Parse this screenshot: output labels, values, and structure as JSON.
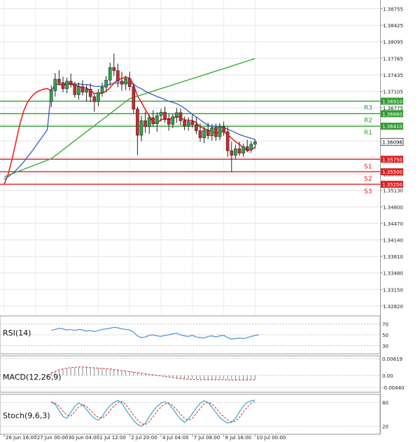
{
  "chart_data": {
    "type": "candlestick",
    "symbol_hint": "",
    "price_axis": {
      "ylim": [
        1.3265,
        1.3893
      ],
      "tick_labels": [
        "1.38755",
        "1.38425",
        "1.38095",
        "1.37765",
        "1.37435",
        "1.37105",
        "1.36775",
        "1.36445",
        "1.36115",
        "1.35785",
        "1.35455",
        "1.35130",
        "1.34800",
        "1.34470",
        "1.34140",
        "1.33810",
        "1.33480",
        "1.33150",
        "1.32820"
      ],
      "tick_values": [
        1.38755,
        1.38425,
        1.38095,
        1.37765,
        1.37435,
        1.37105,
        1.36775,
        1.36445,
        1.36115,
        1.35785,
        1.35455,
        1.3513,
        1.348,
        1.3447,
        1.3414,
        1.3381,
        1.3348,
        1.3315,
        1.3282
      ]
    },
    "current_price": {
      "label": "1.36096",
      "value": 1.36096
    },
    "levels": [
      {
        "name": "R3",
        "label": "1.36910",
        "value": 1.3691,
        "type": "resistance",
        "color": "#2e9e2e"
      },
      {
        "name": "R2",
        "label": "1.36660",
        "value": 1.3666,
        "type": "resistance",
        "color": "#2e9e2e"
      },
      {
        "name": "R1",
        "label": "1.36410",
        "value": 1.3641,
        "type": "resistance",
        "color": "#2e9e2e"
      },
      {
        "name": "S1",
        "label": "1.35750",
        "value": 1.3575,
        "type": "support",
        "color": "#e02020"
      },
      {
        "name": "S2",
        "label": "1.35500",
        "value": 1.355,
        "type": "support",
        "color": "#e02020"
      },
      {
        "name": "S3",
        "label": "1.35250",
        "value": 1.3525,
        "type": "support",
        "color": "#e02020"
      }
    ],
    "x_axis": {
      "labels": [
        {
          "text": "26 Jun 16:00",
          "bar": 0
        },
        {
          "text": "27 Jun 00:00",
          "bar": 8
        },
        {
          "text": "30 Jun 04:00",
          "bar": 16
        },
        {
          "text": "1 Jul 12:00",
          "bar": 24
        },
        {
          "text": "2 Jul 20:00",
          "bar": 32
        },
        {
          "text": "4 Jul 04:00",
          "bar": 40
        },
        {
          "text": "7 Jul 08:00",
          "bar": 48
        },
        {
          "text": "8 Jul 16:00",
          "bar": 56
        },
        {
          "text": "10 Jul 00:00",
          "bar": 64
        }
      ]
    },
    "candles_ohlc": [
      [
        1.369,
        1.3722,
        1.3679,
        1.3712
      ],
      [
        1.3712,
        1.3747,
        1.37,
        1.3735
      ],
      [
        1.3735,
        1.3753,
        1.3722,
        1.3728
      ],
      [
        1.3728,
        1.374,
        1.3709,
        1.3716
      ],
      [
        1.3716,
        1.3738,
        1.3707,
        1.3731
      ],
      [
        1.3731,
        1.3746,
        1.3718,
        1.3725
      ],
      [
        1.3725,
        1.373,
        1.3698,
        1.3704
      ],
      [
        1.3704,
        1.3728,
        1.3694,
        1.372
      ],
      [
        1.372,
        1.3733,
        1.3702,
        1.3709
      ],
      [
        1.3709,
        1.3723,
        1.369,
        1.3715
      ],
      [
        1.3715,
        1.3727,
        1.3689,
        1.37
      ],
      [
        1.37,
        1.3707,
        1.367,
        1.369
      ],
      [
        1.369,
        1.3715,
        1.3681,
        1.3708
      ],
      [
        1.3708,
        1.3728,
        1.37,
        1.3719
      ],
      [
        1.3719,
        1.3741,
        1.3709,
        1.3733
      ],
      [
        1.3733,
        1.3768,
        1.3722,
        1.3758
      ],
      [
        1.3758,
        1.3786,
        1.3741,
        1.3752
      ],
      [
        1.3752,
        1.3766,
        1.3719,
        1.3731
      ],
      [
        1.3731,
        1.375,
        1.3712,
        1.3725
      ],
      [
        1.3725,
        1.3742,
        1.3713,
        1.3736
      ],
      [
        1.3736,
        1.375,
        1.3712,
        1.372
      ],
      [
        1.372,
        1.3727,
        1.3667,
        1.3675
      ],
      [
        1.3675,
        1.368,
        1.3583,
        1.3623
      ],
      [
        1.3623,
        1.3662,
        1.3611,
        1.3652
      ],
      [
        1.3652,
        1.367,
        1.3628,
        1.364
      ],
      [
        1.364,
        1.3664,
        1.3626,
        1.3658
      ],
      [
        1.3658,
        1.3673,
        1.364,
        1.3646
      ],
      [
        1.3646,
        1.3669,
        1.363,
        1.3662
      ],
      [
        1.3662,
        1.3676,
        1.365,
        1.3669
      ],
      [
        1.3669,
        1.368,
        1.3648,
        1.3655
      ],
      [
        1.3655,
        1.3666,
        1.3632,
        1.3645
      ],
      [
        1.3645,
        1.3666,
        1.3637,
        1.366
      ],
      [
        1.366,
        1.3677,
        1.3648,
        1.3668
      ],
      [
        1.3668,
        1.3676,
        1.3643,
        1.3652
      ],
      [
        1.3652,
        1.366,
        1.3633,
        1.3641
      ],
      [
        1.3641,
        1.3658,
        1.3632,
        1.365
      ],
      [
        1.365,
        1.3664,
        1.3638,
        1.3644
      ],
      [
        1.3644,
        1.366,
        1.3625,
        1.3632
      ],
      [
        1.3632,
        1.3646,
        1.361,
        1.3618
      ],
      [
        1.3618,
        1.364,
        1.3607,
        1.3633
      ],
      [
        1.3633,
        1.3648,
        1.3615,
        1.3622
      ],
      [
        1.3622,
        1.3645,
        1.3612,
        1.3638
      ],
      [
        1.3638,
        1.3646,
        1.3612,
        1.362
      ],
      [
        1.362,
        1.3647,
        1.3613,
        1.364
      ],
      [
        1.364,
        1.365,
        1.3622,
        1.363
      ],
      [
        1.363,
        1.364,
        1.358,
        1.3592
      ],
      [
        1.3592,
        1.361,
        1.355,
        1.3583
      ],
      [
        1.3583,
        1.3604,
        1.3576,
        1.3596
      ],
      [
        1.3596,
        1.361,
        1.3582,
        1.3587
      ],
      [
        1.3587,
        1.3606,
        1.358,
        1.36
      ],
      [
        1.36,
        1.3614,
        1.3589,
        1.3594
      ],
      [
        1.3594,
        1.3611,
        1.3588,
        1.3605
      ],
      [
        1.3605,
        1.3615,
        1.3596,
        1.361
      ]
    ],
    "ma_fast": {
      "name": "MA red",
      "color": "#ee2222"
    },
    "ma_mid": {
      "name": "MA blue",
      "color": "#3a5bd0"
    },
    "ma_slow": {
      "name": "MA green",
      "color": "#2ea82e"
    },
    "indicators": [
      {
        "name": "RSI(14)",
        "ticks": [
          "70",
          "50",
          "30"
        ],
        "tick_values": [
          70,
          50,
          30
        ],
        "ylim": [
          15,
          85
        ],
        "values": [
          58,
          60,
          62,
          61,
          59,
          60,
          58,
          60,
          59,
          57,
          58,
          56,
          58,
          60,
          61,
          62,
          64,
          63,
          61,
          60,
          59,
          55,
          48,
          45,
          46,
          49,
          50,
          48,
          47,
          49,
          50,
          52,
          53,
          50,
          48,
          47,
          49,
          46,
          45,
          44,
          47,
          48,
          46,
          48,
          49,
          45,
          42,
          43,
          44,
          43,
          45,
          47,
          49,
          50
        ]
      },
      {
        "name": "MACD(12,26,9)",
        "ticks": [
          "0.00619",
          "0.00",
          "-0.00440"
        ],
        "tick_values": [
          0.00619,
          0,
          -0.0044
        ],
        "ylim": [
          -0.0062,
          0.0072
        ],
        "values": [
          0.0012,
          0.0016,
          0.002,
          0.0024,
          0.0026,
          0.0028,
          0.0029,
          0.003,
          0.003,
          0.003,
          0.0029,
          0.0028,
          0.0027,
          0.0026,
          0.0025,
          0.0024,
          0.0023,
          0.0021,
          0.0019,
          0.0017,
          0.0015,
          0.0013,
          0.0011,
          0.0009,
          0.0007,
          0.0005,
          0.0003,
          0.0001,
          -0.0001,
          -0.0003,
          -0.0005,
          -0.0007,
          -0.0009,
          -0.0011,
          -0.0012,
          -0.0013,
          -0.0014,
          -0.0014,
          -0.0015,
          -0.0015,
          -0.0015,
          -0.0015,
          -0.0015,
          -0.0015,
          -0.0015,
          -0.0016,
          -0.0016,
          -0.0016,
          -0.0016,
          -0.0016,
          -0.0016,
          -0.0015,
          -0.0015
        ],
        "signal": [
          0.001,
          0.0015,
          0.002,
          0.0024,
          0.0027,
          0.0029,
          0.003,
          0.0031,
          0.0031,
          0.003,
          0.0029,
          0.0028,
          0.0027,
          0.0026,
          0.0025,
          0.0024,
          0.0022,
          0.002,
          0.0018,
          0.0016,
          0.0014,
          0.0012,
          0.001,
          0.0008,
          0.0006,
          0.0004,
          0.0002,
          0.0,
          -0.0002,
          -0.0004,
          -0.0006,
          -0.0008,
          -0.001,
          -0.0012,
          -0.0013,
          -0.0014,
          -0.0015,
          -0.0015,
          -0.0016,
          -0.0016,
          -0.0016,
          -0.0016,
          -0.0016,
          -0.0016,
          -0.0016,
          -0.0017,
          -0.0017,
          -0.0017,
          -0.0017,
          -0.0017,
          -0.0017,
          -0.0016,
          -0.0016
        ]
      },
      {
        "name": "Stoch(9,6,3)",
        "ticks": [
          "80",
          "20"
        ],
        "tick_values": [
          80,
          20
        ],
        "ylim": [
          0,
          100
        ],
        "k": [
          82,
          75,
          60,
          45,
          40,
          55,
          70,
          78,
          74,
          62,
          50,
          40,
          35,
          45,
          60,
          72,
          80,
          85,
          78,
          62,
          48,
          35,
          25,
          20,
          28,
          44,
          58,
          70,
          78,
          82,
          76,
          64,
          50,
          38,
          30,
          38,
          52,
          66,
          78,
          84,
          80,
          68,
          55,
          42,
          34,
          28,
          30,
          40,
          56,
          70,
          80,
          84,
          86
        ],
        "d": [
          80,
          78,
          70,
          58,
          48,
          46,
          56,
          68,
          74,
          70,
          60,
          50,
          42,
          40,
          48,
          60,
          70,
          80,
          82,
          75,
          62,
          48,
          36,
          27,
          24,
          32,
          44,
          58,
          68,
          76,
          78,
          72,
          62,
          50,
          40,
          35,
          40,
          52,
          65,
          76,
          80,
          76,
          66,
          54,
          44,
          36,
          31,
          33,
          42,
          56,
          68,
          78,
          83
        ]
      }
    ]
  }
}
